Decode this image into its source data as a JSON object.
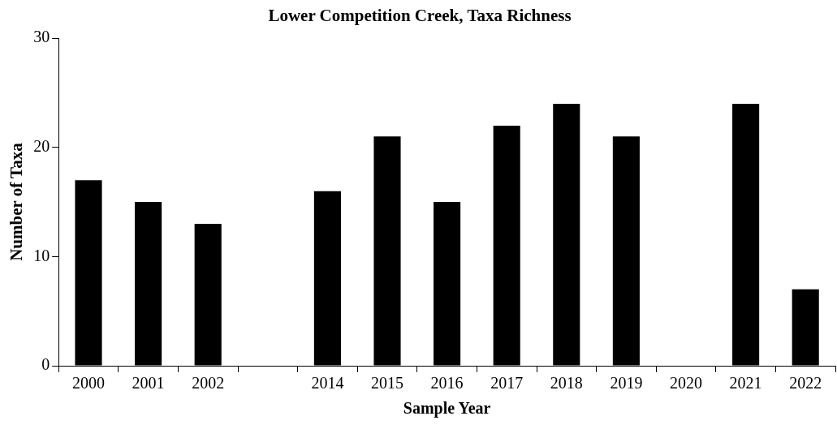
{
  "chart_data": {
    "type": "bar",
    "title": "Lower Competition Creek, Taxa Richness",
    "xlabel": "Sample Year",
    "ylabel": "Number of Taxa",
    "categories": [
      "2000",
      "2001",
      "2002",
      null,
      "2014",
      "2015",
      "2016",
      "2017",
      "2018",
      "2019",
      "2020",
      "2021",
      "2022"
    ],
    "values": [
      17,
      15,
      13,
      null,
      16,
      21,
      15,
      22,
      24,
      21,
      null,
      24,
      7
    ],
    "color": "#000000",
    "ylim": [
      0,
      30
    ],
    "yticks": [
      0,
      10,
      20,
      30
    ],
    "legend": false
  }
}
